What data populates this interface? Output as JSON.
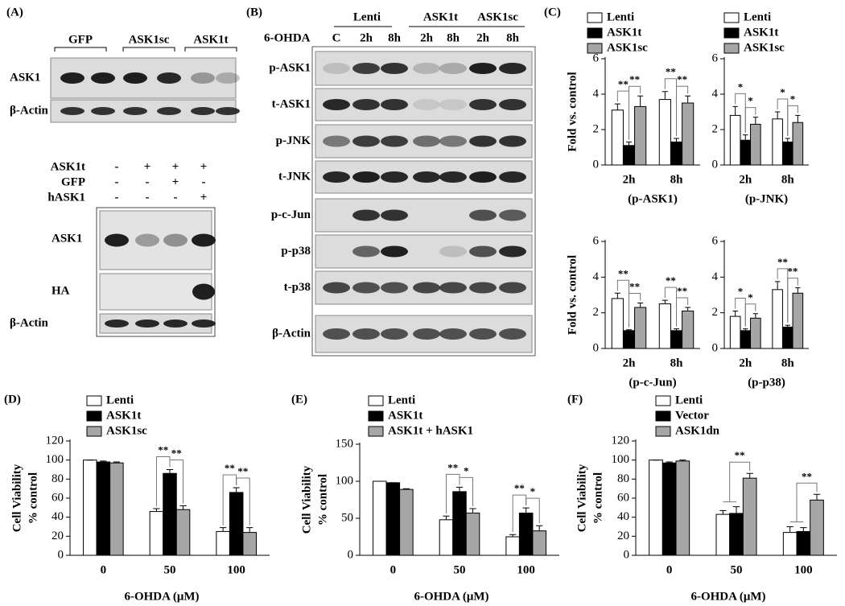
{
  "panels": {
    "A": {
      "label": "(A)",
      "top": {
        "groups": [
          "GFP",
          "ASK1sc",
          "ASK1t"
        ],
        "rows": [
          "ASK1",
          "β-Actin"
        ]
      },
      "bottom": {
        "conditions": [
          {
            "name": "ASK1t",
            "marks": [
              "-",
              "+",
              "+",
              "+"
            ]
          },
          {
            "name": "GFP",
            "marks": [
              "-",
              "-",
              "+",
              "-"
            ]
          },
          {
            "name": "hASK1",
            "marks": [
              "-",
              "-",
              "-",
              "+"
            ]
          }
        ],
        "rows": [
          "ASK1",
          "HA",
          "β-Actin"
        ]
      }
    },
    "B": {
      "label": "(B)",
      "groups": [
        "Lenti",
        "ASK1t",
        "ASK1sc"
      ],
      "treatment": "6-OHDA",
      "lanes": [
        "C",
        "2h",
        "8h",
        "2h",
        "8h",
        "2h",
        "8h"
      ],
      "rows": [
        "p-ASK1",
        "t-ASK1",
        "p-JNK",
        "t-JNK",
        "p-c-Jun",
        "p-p38",
        "t-p38",
        "β-Actin"
      ]
    }
  },
  "chart_data": [
    {
      "type": "bar",
      "panel": "(C)",
      "ylabel": [
        "Fold vs. control"
      ],
      "xlabel": "(p-ASK1)",
      "categories": [
        "2h",
        "8h"
      ],
      "ylim": [
        0,
        6
      ],
      "yticks": [
        0,
        2,
        4,
        6
      ],
      "legend": true,
      "series": [
        {
          "name": "Lenti",
          "color": "#ffffff",
          "values": [
            3.1,
            3.7
          ],
          "errors": [
            0.35,
            0.45
          ]
        },
        {
          "name": "ASK1t",
          "color": "#000000",
          "values": [
            1.1,
            1.3
          ],
          "errors": [
            0.2,
            0.2
          ]
        },
        {
          "name": "ASK1sc",
          "color": "#a6a6a6",
          "values": [
            3.3,
            3.5
          ],
          "errors": [
            0.6,
            0.4
          ]
        }
      ],
      "significance": [
        [
          "**",
          "**"
        ],
        [
          "**",
          "**"
        ]
      ]
    },
    {
      "type": "bar",
      "xlabel": "(p-JNK)",
      "categories": [
        "2h",
        "8h"
      ],
      "ylim": [
        0,
        6
      ],
      "yticks": [
        0,
        2,
        4,
        6
      ],
      "legend": true,
      "series": [
        {
          "name": "Lenti",
          "color": "#ffffff",
          "values": [
            2.8,
            2.6
          ],
          "errors": [
            0.5,
            0.4
          ]
        },
        {
          "name": "ASK1t",
          "color": "#000000",
          "values": [
            1.4,
            1.3
          ],
          "errors": [
            0.3,
            0.2
          ]
        },
        {
          "name": "ASK1sc",
          "color": "#a6a6a6",
          "values": [
            2.3,
            2.4
          ],
          "errors": [
            0.4,
            0.4
          ]
        }
      ],
      "significance": [
        [
          "*",
          "*"
        ],
        [
          "*",
          "*"
        ]
      ]
    },
    {
      "type": "bar",
      "ylabel": [
        "Fold vs. control"
      ],
      "xlabel": "(p-c-Jun)",
      "categories": [
        "2h",
        "8h"
      ],
      "ylim": [
        0,
        6
      ],
      "yticks": [
        0,
        2,
        4,
        6
      ],
      "legend": false,
      "series": [
        {
          "name": "Lenti",
          "color": "#ffffff",
          "values": [
            2.8,
            2.5
          ],
          "errors": [
            0.3,
            0.2
          ]
        },
        {
          "name": "ASK1t",
          "color": "#000000",
          "values": [
            1.0,
            1.0
          ],
          "errors": [
            0.05,
            0.1
          ]
        },
        {
          "name": "ASK1sc",
          "color": "#a6a6a6",
          "values": [
            2.3,
            2.1
          ],
          "errors": [
            0.25,
            0.2
          ]
        }
      ],
      "significance": [
        [
          "**",
          "**"
        ],
        [
          "**",
          "**"
        ]
      ]
    },
    {
      "type": "bar",
      "xlabel": "(p-p38)",
      "categories": [
        "2h",
        "8h"
      ],
      "ylim": [
        0,
        6
      ],
      "yticks": [
        0,
        2,
        4,
        6
      ],
      "legend": false,
      "series": [
        {
          "name": "Lenti",
          "color": "#ffffff",
          "values": [
            1.8,
            3.3
          ],
          "errors": [
            0.3,
            0.45
          ]
        },
        {
          "name": "ASK1t",
          "color": "#000000",
          "values": [
            1.0,
            1.2
          ],
          "errors": [
            0.1,
            0.1
          ]
        },
        {
          "name": "ASK1sc",
          "color": "#a6a6a6",
          "values": [
            1.7,
            3.1
          ],
          "errors": [
            0.25,
            0.3
          ]
        }
      ],
      "significance": [
        [
          "*",
          "*"
        ],
        [
          "**",
          "**"
        ]
      ]
    },
    {
      "type": "bar",
      "panel": "(D)",
      "ylabel": [
        "Cell Viability",
        "% control"
      ],
      "xlabel": "6-OHDA (μM)",
      "categories": [
        "0",
        "50",
        "100"
      ],
      "ylim": [
        0,
        120
      ],
      "yticks": [
        0,
        20,
        40,
        60,
        80,
        100,
        120
      ],
      "legend": true,
      "series": [
        {
          "name": "Lenti",
          "color": "#ffffff",
          "values": [
            100,
            46,
            25
          ],
          "errors": [
            0,
            3,
            4
          ]
        },
        {
          "name": "ASK1t",
          "color": "#000000",
          "values": [
            98,
            86,
            66
          ],
          "errors": [
            1,
            4,
            5
          ]
        },
        {
          "name": "ASK1sc",
          "color": "#a6a6a6",
          "values": [
            97,
            48,
            24
          ],
          "errors": [
            1,
            4,
            5
          ]
        }
      ],
      "significance": [
        [],
        [
          "**",
          "**"
        ],
        [
          "**",
          "**"
        ]
      ]
    },
    {
      "type": "bar",
      "panel": "(E)",
      "ylabel": [
        "Cell Viability",
        "% control"
      ],
      "xlabel": "6-OHDA (μM)",
      "categories": [
        "0",
        "50",
        "100"
      ],
      "ylim": [
        0,
        150
      ],
      "yticks": [
        0,
        50,
        100,
        150
      ],
      "legend": true,
      "series": [
        {
          "name": "Lenti",
          "color": "#ffffff",
          "values": [
            100,
            48,
            25
          ],
          "errors": [
            0,
            5,
            3
          ]
        },
        {
          "name": "ASK1t",
          "color": "#000000",
          "values": [
            98,
            86,
            57
          ],
          "errors": [
            0,
            6,
            7
          ]
        },
        {
          "name": "ASK1t + hASK1",
          "color": "#a6a6a6",
          "values": [
            89,
            57,
            33
          ],
          "errors": [
            1,
            6,
            7
          ]
        }
      ],
      "significance": [
        [],
        [
          "**",
          "*"
        ],
        [
          "**",
          "*"
        ]
      ]
    },
    {
      "type": "bar",
      "panel": "(F)",
      "ylabel": [
        "Cell Viability",
        "% control"
      ],
      "xlabel": "6-OHDA (μM)",
      "categories": [
        "0",
        "50",
        "100"
      ],
      "ylim": [
        0,
        120
      ],
      "yticks": [
        0,
        20,
        40,
        60,
        80,
        100,
        120
      ],
      "legend": true,
      "series": [
        {
          "name": "Lenti",
          "color": "#ffffff",
          "values": [
            100,
            43,
            24
          ],
          "errors": [
            0,
            4,
            6
          ]
        },
        {
          "name": "Vector",
          "color": "#000000",
          "values": [
            97,
            44,
            25
          ],
          "errors": [
            1,
            7,
            4
          ]
        },
        {
          "name": "ASK1dn",
          "color": "#a6a6a6",
          "values": [
            99,
            81,
            58
          ],
          "errors": [
            1,
            5,
            6
          ]
        }
      ],
      "significance": [
        [],
        [
          "**"
        ],
        [
          "**"
        ]
      ]
    }
  ]
}
